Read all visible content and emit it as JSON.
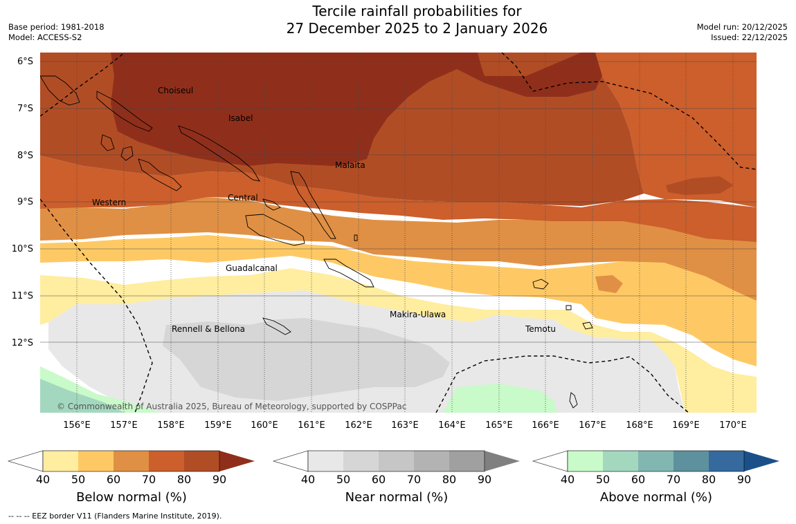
{
  "title": {
    "line1": "Tercile rainfall probabilities for",
    "line2": "27 December 2025 to 2 January 2026"
  },
  "meta": {
    "base_period": "Base period: 1981-2018",
    "model": "Model: ACCESS-S2",
    "model_run": "Model run: 20/12/2025",
    "issued": "Issued: 22/12/2025"
  },
  "map": {
    "lat_ticks": [
      "6°S",
      "7°S",
      "8°S",
      "9°S",
      "10°S",
      "11°S",
      "12°S"
    ],
    "lon_ticks": [
      "156°E",
      "157°E",
      "158°E",
      "159°E",
      "160°E",
      "161°E",
      "162°E",
      "163°E",
      "164°E",
      "165°E",
      "166°E",
      "167°E",
      "168°E",
      "169°E",
      "170°E"
    ],
    "region_labels": {
      "choiseul": "Choiseul",
      "isabel": "Isabel",
      "malaita": "Malaita",
      "western": "Western",
      "central": "Central",
      "guadalcanal": "Guadalcanal",
      "makira": "Makira-Ulawa",
      "rennell": "Rennell & Bellona",
      "temotu": "Temotu"
    },
    "copyright": "© Commonwealth of Australia 2025, Bureau of Meteorology, supported by COSPPac"
  },
  "colorbars": [
    {
      "title": "Below normal (%)",
      "ticks": [
        "40",
        "50",
        "60",
        "70",
        "80",
        "90"
      ],
      "colors": [
        "#ffffff",
        "#ffeda0",
        "#fec965",
        "#e09044",
        "#cc5f2c",
        "#b14d25",
        "#8f2f1b"
      ]
    },
    {
      "title": "Near normal (%)",
      "ticks": [
        "40",
        "50",
        "60",
        "70",
        "80",
        "90"
      ],
      "colors": [
        "#ffffff",
        "#e8e8e8",
        "#d6d6d6",
        "#c6c6c6",
        "#b3b3b3",
        "#a0a0a0",
        "#808080"
      ]
    },
    {
      "title": "Above normal (%)",
      "ticks": [
        "40",
        "50",
        "60",
        "70",
        "80",
        "90"
      ],
      "colors": [
        "#ffffff",
        "#c9fac9",
        "#a3d8bf",
        "#82b6b1",
        "#5e919e",
        "#366a9e",
        "#1a4f8a"
      ]
    }
  ],
  "footnote": "--  --  -- EEZ border V11 (Flanders Marine Institute, 2019)."
}
